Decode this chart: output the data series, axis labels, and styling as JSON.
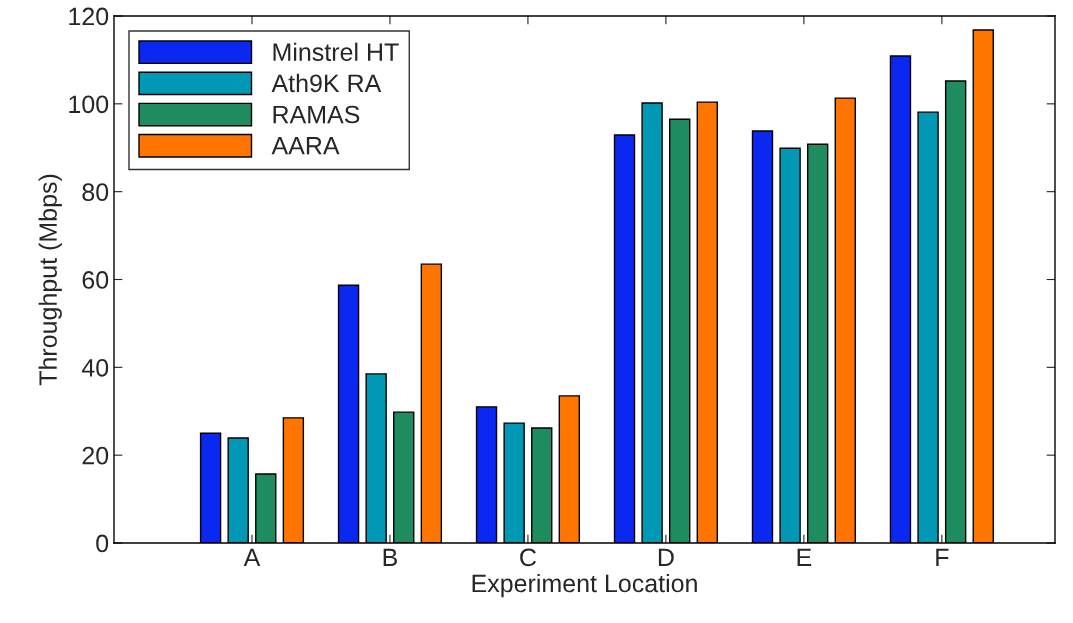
{
  "chart_data": {
    "type": "bar",
    "xlabel": "Experiment Location",
    "ylabel": "Throughput (Mbps)",
    "categories": [
      "A",
      "B",
      "C",
      "D",
      "E",
      "F"
    ],
    "series": [
      {
        "name": "Minstrel HT",
        "color": "#0a28f0",
        "values": [
          25.0,
          58.7,
          31.0,
          92.9,
          93.8,
          110.9
        ]
      },
      {
        "name": "Ath9K RA",
        "color": "#0098b4",
        "values": [
          23.9,
          38.5,
          27.3,
          100.2,
          89.9,
          98.1
        ]
      },
      {
        "name": "RAMAS",
        "color": "#1f8c60",
        "values": [
          15.7,
          29.8,
          26.2,
          96.5,
          90.8,
          105.2
        ]
      },
      {
        "name": "AARA",
        "color": "#ff7500",
        "values": [
          28.5,
          63.5,
          33.5,
          100.4,
          101.3,
          116.8
        ]
      }
    ],
    "ylim": [
      0,
      120
    ],
    "yticks": [
      0,
      20,
      40,
      60,
      80,
      100,
      120
    ],
    "grid": false,
    "legend": "top left"
  }
}
